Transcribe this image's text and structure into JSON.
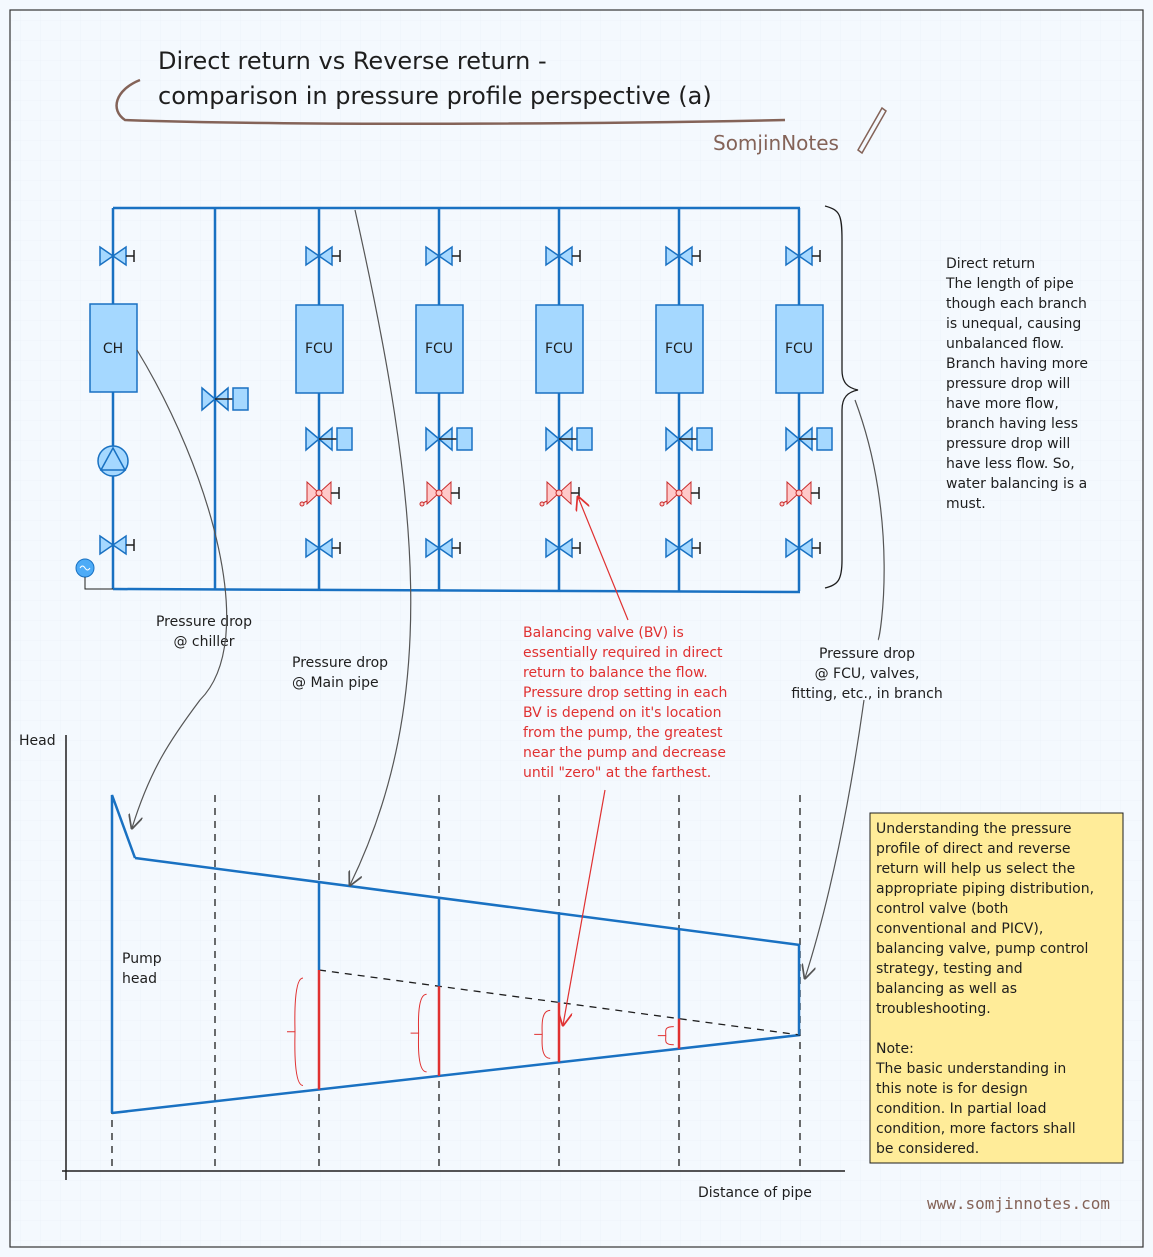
{
  "title": {
    "line1": "Direct return vs Reverse return -",
    "line2": "comparison in pressure profile perspective (a)",
    "author": "SomjinNotes"
  },
  "diagram": {
    "chiller_label": "CH",
    "fcu_labels": [
      "FCU",
      "FCU",
      "FCU",
      "FCU",
      "FCU"
    ]
  },
  "notes": {
    "direct_return": [
      "Direct return",
      "The length of pipe",
      "though each branch",
      "is unequal, causing",
      "unbalanced flow.",
      "Branch having more",
      "pressure drop will",
      "have more flow,",
      "branch having less",
      "pressure drop will",
      "have less flow. So,",
      "water balancing is a",
      "must."
    ],
    "pd_chiller": [
      "Pressure drop",
      "@ chiller"
    ],
    "pd_main_pipe": [
      "Pressure drop",
      "@ Main pipe"
    ],
    "balancing_valve": [
      "Balancing valve (BV)  is",
      "essentially required in direct",
      "return to balance the flow.",
      "Pressure drop setting in each",
      "BV is depend on it's location",
      "from the pump, the greatest",
      "near the pump and decrease",
      "until \"zero\" at the farthest."
    ],
    "pd_fcu": [
      "Pressure drop",
      "@ FCU, valves,",
      "fitting, etc., in branch"
    ],
    "pump_head": [
      "Pump",
      "head"
    ],
    "summary": [
      "Understanding the pressure",
      "profile of direct and reverse",
      "return will help us select the",
      "appropriate piping distribution,",
      "control valve (both",
      "conventional and PICV),",
      "balancing valve, pump control",
      "strategy, testing and",
      "balancing as well as",
      "troubleshooting.",
      "",
      "Note:",
      "The basic understanding in",
      "this note is for design",
      "condition. In partial load",
      "condition, more factors shall",
      "be considered."
    ]
  },
  "chart": {
    "ylabel": "Head",
    "xlabel": "Distance of pipe"
  },
  "footer": {
    "website": "www.somjinnotes.com"
  },
  "colors": {
    "pipe": "#1971c2",
    "annotation": "#e03131",
    "note_bg": "#ffec99",
    "page_bg": "#f4f9fe"
  }
}
